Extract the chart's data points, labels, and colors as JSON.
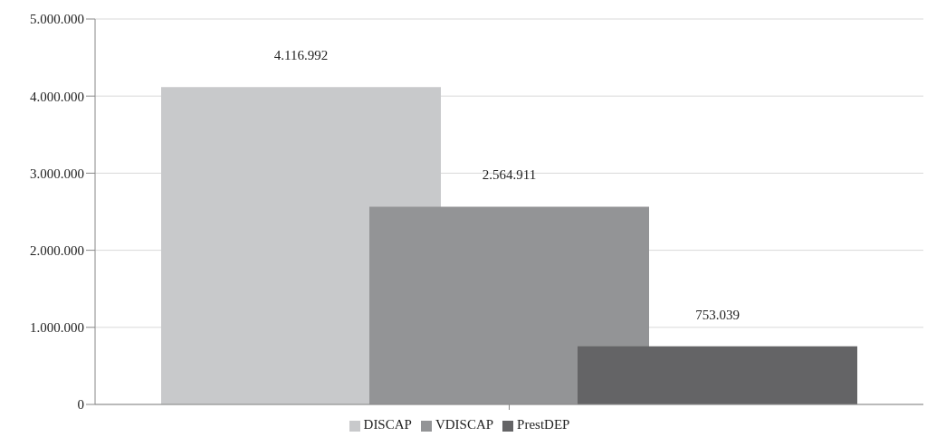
{
  "chart_data": {
    "type": "bar",
    "categories": [
      null
    ],
    "series": [
      {
        "name": "DISCAP",
        "color": "#c8c9cb",
        "values": [
          4116992
        ],
        "value_labels": [
          "4.116.992"
        ]
      },
      {
        "name": "VDISCAP",
        "color": "#939496",
        "values": [
          2564911
        ],
        "value_labels": [
          "2.564.911"
        ]
      },
      {
        "name": "PrestDEP",
        "color": "#646466",
        "values": [
          753039
        ],
        "value_labels": [
          "753.039"
        ]
      }
    ],
    "ylim": [
      0,
      5000000
    ],
    "yticks": [
      {
        "value": 0,
        "label": "0"
      },
      {
        "value": 1000000,
        "label": "1.000.000"
      },
      {
        "value": 2000000,
        "label": "2.000.000"
      },
      {
        "value": 3000000,
        "label": "3.000.000"
      },
      {
        "value": 4000000,
        "label": "4.000.000"
      },
      {
        "value": 5000000,
        "label": "5.000.000"
      }
    ],
    "grid": "y",
    "legend": "bottom"
  }
}
